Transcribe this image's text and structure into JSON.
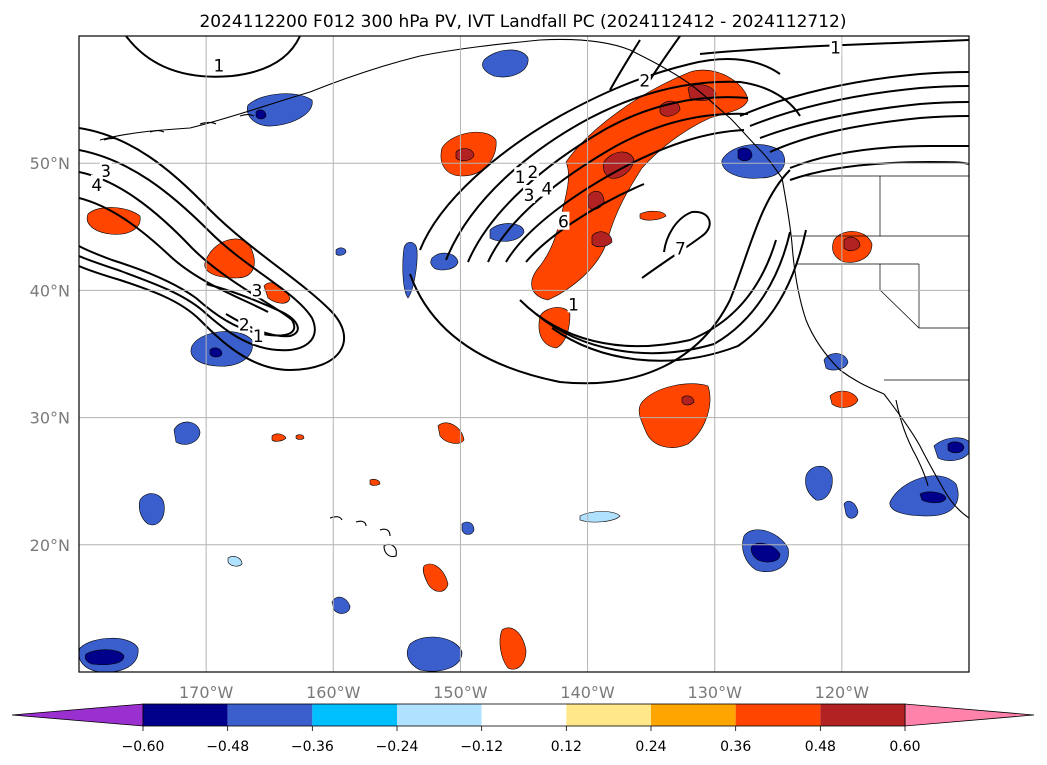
{
  "title": "2024112200 F012 300 hPa PV, IVT Landfall PC (2024112412 - 2024112712)",
  "map": {
    "lon_range": [
      -180,
      -110
    ],
    "lat_range": [
      10,
      60
    ],
    "lon_ticks": [
      {
        "lon": -170,
        "label": "170°W"
      },
      {
        "lon": -160,
        "label": "160°W"
      },
      {
        "lon": -150,
        "label": "150°W"
      },
      {
        "lon": -140,
        "label": "140°W"
      },
      {
        "lon": -130,
        "label": "130°W"
      },
      {
        "lon": -120,
        "label": "120°W"
      }
    ],
    "lat_ticks": [
      {
        "lat": 20,
        "label": "20°N"
      },
      {
        "lat": 30,
        "label": "30°N"
      },
      {
        "lat": 40,
        "label": "40°N"
      },
      {
        "lat": 50,
        "label": "50°N"
      }
    ],
    "grid": true,
    "contour_labels": [
      {
        "text": "1",
        "lon": -169.0,
        "lat": 57.7
      },
      {
        "text": "1",
        "lon": -120.5,
        "lat": 59.1
      },
      {
        "text": "2",
        "lon": -135.5,
        "lat": 56.5
      },
      {
        "text": "3",
        "lon": -177.9,
        "lat": 49.4
      },
      {
        "text": "4",
        "lon": -178.6,
        "lat": 48.3
      },
      {
        "text": "3",
        "lon": -166.0,
        "lat": 40.0
      },
      {
        "text": "2",
        "lon": -167.0,
        "lat": 37.3
      },
      {
        "text": "1",
        "lon": -165.9,
        "lat": 36.4
      },
      {
        "text": "1",
        "lon": -145.3,
        "lat": 48.9
      },
      {
        "text": "2",
        "lon": -144.3,
        "lat": 49.3
      },
      {
        "text": "3",
        "lon": -144.6,
        "lat": 47.5
      },
      {
        "text": "4",
        "lon": -143.2,
        "lat": 48.0
      },
      {
        "text": "6",
        "lon": -141.9,
        "lat": 45.4
      },
      {
        "text": "7",
        "lon": -132.7,
        "lat": 43.3
      },
      {
        "text": "1",
        "lon": -141.1,
        "lat": 38.9
      }
    ]
  },
  "colorbar": {
    "levels": [
      -0.6,
      -0.48,
      -0.36,
      -0.24,
      -0.12,
      0.12,
      0.24,
      0.36,
      0.48,
      0.6
    ],
    "tick_labels": [
      "−0.60",
      "−0.48",
      "−0.36",
      "−0.24",
      "−0.12",
      "0.12",
      "0.24",
      "0.36",
      "0.48",
      "0.60"
    ],
    "colors": [
      "#9b30d0",
      "#00008b",
      "#3a5fcd",
      "#00bfff",
      "#b0e2ff",
      "#ffffff",
      "#ffe78a",
      "#ffa500",
      "#ff4500",
      "#b22222",
      "#ff82ab"
    ],
    "extend": "both"
  }
}
